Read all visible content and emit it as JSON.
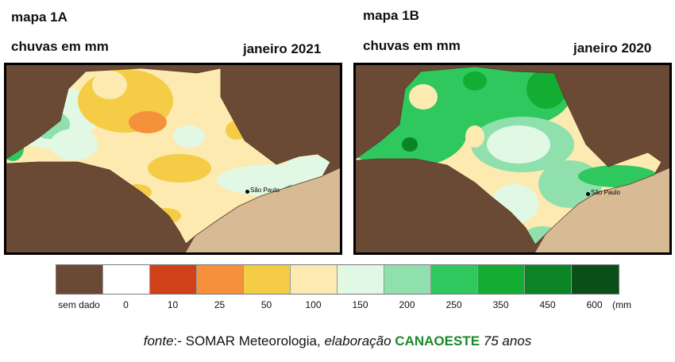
{
  "map_1a": {
    "id": "mapa 1A",
    "subtitle": "chuvas em mm",
    "period": "janeiro 2021",
    "city": "São Paulo"
  },
  "map_1b": {
    "id": "mapa 1B",
    "subtitle": "chuvas em mm",
    "period": "janeiro 2020",
    "city": "São Paulo"
  },
  "legend": {
    "unit": "(mm",
    "items": [
      {
        "label": "sem dado",
        "color": "#6b4a35"
      },
      {
        "label": "0",
        "color": "#ffffff"
      },
      {
        "label": "10",
        "color": "#d1401a"
      },
      {
        "label": "25",
        "color": "#f5913a"
      },
      {
        "label": "50",
        "color": "#f5cc45"
      },
      {
        "label": "100",
        "color": "#fdeab0"
      },
      {
        "label": "150",
        "color": "#e1f8e4"
      },
      {
        "label": "200",
        "color": "#8fe0ad"
      },
      {
        "label": "250",
        "color": "#2fc85f"
      },
      {
        "label": "350",
        "color": "#12ad32"
      },
      {
        "label": "450",
        "color": "#0a8424"
      },
      {
        "label": "600",
        "color": "#0a4f17"
      }
    ]
  },
  "source": {
    "prefix": "fonte",
    "text": ":- SOMAR Meteorologia, ",
    "elab": "elaboração",
    "brand": "CANAOESTE",
    "suffix": "75 anos"
  }
}
